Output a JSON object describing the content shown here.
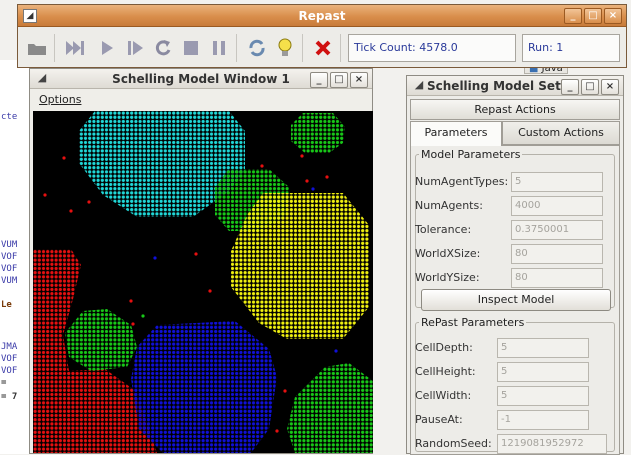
{
  "background_code": {
    "lines": [
      "cte",
      "VUM",
      "VOF",
      "VOF",
      "VUM",
      "Le",
      "JMA",
      "VOF",
      "VOF",
      "=",
      "= 7"
    ]
  },
  "background_java_tab": "Java",
  "repast": {
    "title": "Repast",
    "window_buttons": [
      "_",
      "□",
      "×"
    ],
    "toolbar": {
      "buttons": [
        {
          "name": "setup-button",
          "icon": "folder-icon"
        },
        {
          "name": "step-forward-button",
          "icon": "fast-forward-icon"
        },
        {
          "name": "run-button",
          "icon": "play-icon"
        },
        {
          "name": "step-button",
          "icon": "step-icon"
        },
        {
          "name": "reset-button",
          "icon": "refresh-icon"
        },
        {
          "name": "stop-button",
          "icon": "stop-icon"
        },
        {
          "name": "pause-button",
          "icon": "pause-icon"
        },
        {
          "name": "settings-button",
          "icon": "cycle-icon"
        },
        {
          "name": "info-button",
          "icon": "lightbulb-icon"
        },
        {
          "name": "exit-button",
          "icon": "close-icon"
        }
      ],
      "tick_count": "Tick Count: 4578.0",
      "run": "Run: 1"
    },
    "colors": {
      "titlebar": "#d98e4b",
      "exit_icon": "#d01010",
      "field_text": "#2a3a9a"
    }
  },
  "model_window": {
    "title": "Schelling Model Window 1",
    "window_buttons": [
      "_",
      "□",
      "×"
    ],
    "menu_options": "Options",
    "agent_colors": {
      "red": "#e61010",
      "blue": "#1010d8",
      "green": "#18c818",
      "cyan": "#20d8d8",
      "yellow": "#f0f010",
      "background": "#000000"
    }
  },
  "settings_window": {
    "title": "Schelling Model Set",
    "window_buttons": [
      "_",
      "□",
      "×"
    ],
    "repast_actions": "Repast Actions",
    "tabs": [
      {
        "label": "Parameters",
        "active": true
      },
      {
        "label": "Custom Actions",
        "active": false
      }
    ],
    "model_parameters": {
      "legend": "Model Parameters",
      "rows": [
        {
          "label": "NumAgentTypes:",
          "value": "5"
        },
        {
          "label": "NumAgents:",
          "value": "4000"
        },
        {
          "label": "Tolerance:",
          "value": "0.3750001"
        },
        {
          "label": "WorldXSize:",
          "value": "80"
        },
        {
          "label": "WorldYSize:",
          "value": "80"
        }
      ],
      "inspect_button": "Inspect Model"
    },
    "repast_parameters": {
      "legend": "RePast Parameters",
      "rows": [
        {
          "label": "CellDepth:",
          "value": "5"
        },
        {
          "label": "CellHeight:",
          "value": "5"
        },
        {
          "label": "CellWidth:",
          "value": "5"
        },
        {
          "label": "PauseAt:",
          "value": "-1"
        },
        {
          "label": "RandomSeed:",
          "value": "1219081952972"
        }
      ]
    }
  }
}
